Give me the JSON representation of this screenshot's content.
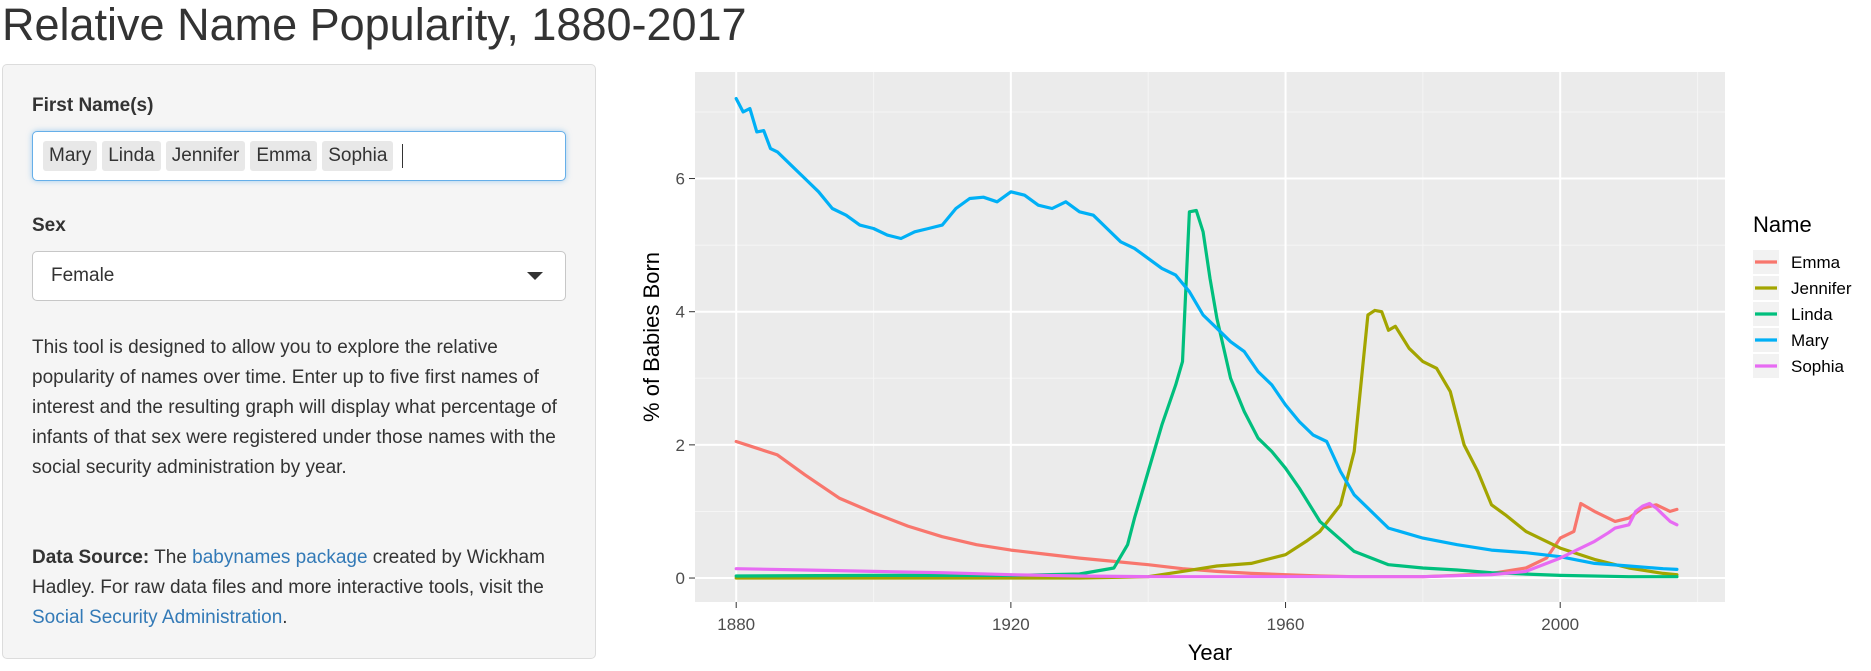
{
  "page": {
    "title": "Relative Name Popularity, 1880-2017"
  },
  "sidebar": {
    "names_label": "First Name(s)",
    "names": [
      "Mary",
      "Linda",
      "Jennifer",
      "Emma",
      "Sophia"
    ],
    "sex_label": "Sex",
    "sex_value": "Female",
    "description": "This tool is designed to allow you to explore the relative popularity of names over time. Enter up to five first names of interest and the resulting graph will display what percentage of infants of that sex were registered under those names with the social security administration by year.",
    "source": {
      "label": "Data Source:",
      "text1": "The",
      "link1": "babynames package",
      "text2": "created by Wickham Hadley. For raw data files and more interactive tools, visit the",
      "link2": "Social Security Administration",
      "text3": "."
    }
  },
  "chart_data": {
    "type": "line",
    "title": "",
    "xlabel": "Year",
    "ylabel": "% of Babies Born",
    "xlim": [
      1874,
      2024
    ],
    "ylim": [
      -0.36,
      7.6
    ],
    "xticks": [
      1880,
      1920,
      1960,
      2000
    ],
    "yticks": [
      0,
      2,
      4,
      6
    ],
    "grid": true,
    "legend_title": "Name",
    "legend_position": "right",
    "series": [
      {
        "name": "Emma",
        "color": "#F8766D",
        "x": [
          1880,
          1883,
          1886,
          1890,
          1895,
          1900,
          1905,
          1910,
          1915,
          1920,
          1925,
          1930,
          1935,
          1940,
          1945,
          1950,
          1955,
          1960,
          1965,
          1970,
          1975,
          1980,
          1985,
          1990,
          1995,
          1998,
          2000,
          2002,
          2003,
          2005,
          2008,
          2010,
          2012,
          2014,
          2016,
          2017
        ],
        "y": [
          2.05,
          1.95,
          1.85,
          1.55,
          1.2,
          0.98,
          0.78,
          0.62,
          0.5,
          0.42,
          0.36,
          0.3,
          0.25,
          0.2,
          0.14,
          0.1,
          0.07,
          0.05,
          0.03,
          0.02,
          0.02,
          0.02,
          0.04,
          0.07,
          0.15,
          0.3,
          0.6,
          0.7,
          1.12,
          1.0,
          0.85,
          0.9,
          1.05,
          1.1,
          1.0,
          1.03
        ]
      },
      {
        "name": "Jennifer",
        "color": "#A3A500",
        "x": [
          1880,
          1915,
          1920,
          1930,
          1940,
          1945,
          1950,
          1955,
          1960,
          1963,
          1965,
          1968,
          1970,
          1972,
          1973,
          1974,
          1975,
          1976,
          1978,
          1980,
          1982,
          1984,
          1986,
          1988,
          1990,
          1992,
          1995,
          1998,
          2000,
          2005,
          2010,
          2015,
          2017
        ],
        "y": [
          0,
          0,
          0,
          0,
          0.02,
          0.1,
          0.18,
          0.22,
          0.35,
          0.55,
          0.7,
          1.1,
          1.9,
          3.95,
          4.02,
          4.0,
          3.72,
          3.78,
          3.45,
          3.25,
          3.15,
          2.8,
          2.0,
          1.6,
          1.1,
          0.95,
          0.7,
          0.55,
          0.45,
          0.28,
          0.15,
          0.07,
          0.05
        ]
      },
      {
        "name": "Linda",
        "color": "#00BF7D",
        "x": [
          1880,
          1900,
          1920,
          1930,
          1935,
          1937,
          1938,
          1940,
          1942,
          1944,
          1945,
          1946,
          1947,
          1948,
          1949,
          1950,
          1952,
          1954,
          1956,
          1958,
          1960,
          1962,
          1965,
          1970,
          1975,
          1980,
          1985,
          1990,
          2000,
          2010,
          2017
        ],
        "y": [
          0.03,
          0.04,
          0.04,
          0.06,
          0.15,
          0.5,
          0.9,
          1.6,
          2.3,
          2.9,
          3.25,
          5.5,
          5.52,
          5.2,
          4.5,
          3.9,
          3.0,
          2.5,
          2.1,
          1.9,
          1.65,
          1.35,
          0.85,
          0.4,
          0.2,
          0.15,
          0.12,
          0.08,
          0.04,
          0.02,
          0.02
        ]
      },
      {
        "name": "Mary",
        "color": "#00B0F6",
        "x": [
          1880,
          1881,
          1882,
          1883,
          1884,
          1885,
          1886,
          1888,
          1890,
          1892,
          1894,
          1896,
          1898,
          1900,
          1902,
          1904,
          1906,
          1908,
          1910,
          1912,
          1914,
          1916,
          1918,
          1920,
          1922,
          1924,
          1926,
          1928,
          1930,
          1932,
          1934,
          1936,
          1938,
          1940,
          1942,
          1944,
          1946,
          1948,
          1950,
          1952,
          1954,
          1956,
          1958,
          1960,
          1962,
          1964,
          1966,
          1968,
          1970,
          1975,
          1980,
          1985,
          1990,
          1995,
          2000,
          2005,
          2010,
          2015,
          2017
        ],
        "y": [
          7.2,
          7.0,
          7.05,
          6.7,
          6.72,
          6.45,
          6.4,
          6.2,
          6.0,
          5.8,
          5.55,
          5.45,
          5.3,
          5.25,
          5.15,
          5.1,
          5.2,
          5.25,
          5.3,
          5.55,
          5.7,
          5.72,
          5.65,
          5.8,
          5.75,
          5.6,
          5.55,
          5.65,
          5.5,
          5.45,
          5.25,
          5.05,
          4.95,
          4.8,
          4.65,
          4.55,
          4.3,
          3.95,
          3.75,
          3.55,
          3.4,
          3.1,
          2.9,
          2.6,
          2.35,
          2.15,
          2.05,
          1.6,
          1.25,
          0.75,
          0.6,
          0.5,
          0.42,
          0.38,
          0.32,
          0.22,
          0.18,
          0.14,
          0.13
        ]
      },
      {
        "name": "Sophia",
        "color": "#E76BF3",
        "x": [
          1880,
          1890,
          1900,
          1910,
          1920,
          1930,
          1940,
          1950,
          1960,
          1970,
          1980,
          1990,
          1995,
          2000,
          2003,
          2005,
          2007,
          2008,
          2010,
          2011,
          2012,
          2013,
          2014,
          2015,
          2016,
          2017
        ],
        "y": [
          0.14,
          0.12,
          0.1,
          0.08,
          0.05,
          0.03,
          0.02,
          0.02,
          0.02,
          0.02,
          0.02,
          0.05,
          0.1,
          0.3,
          0.45,
          0.55,
          0.68,
          0.75,
          0.8,
          1.0,
          1.08,
          1.12,
          1.05,
          0.95,
          0.85,
          0.8
        ]
      }
    ]
  }
}
